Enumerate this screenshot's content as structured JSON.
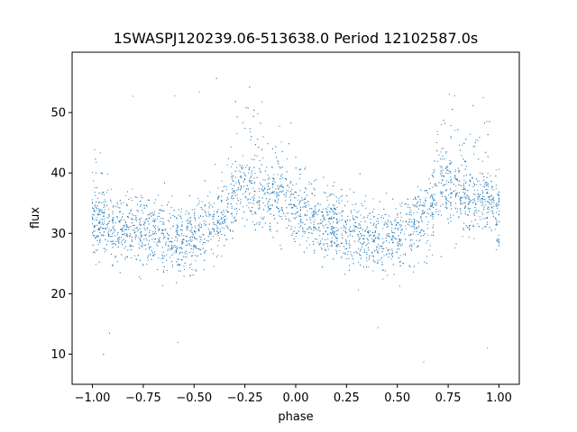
{
  "chart_data": {
    "type": "scatter",
    "title": "1SWASPJ120239.06-513638.0 Period 12102587.0s",
    "xlabel": "phase",
    "ylabel": "flux",
    "xlim": [
      -1.1,
      1.1
    ],
    "ylim": [
      5,
      60
    ],
    "x_ticks": [
      -1.0,
      -0.75,
      -0.5,
      -0.25,
      0.0,
      0.25,
      0.5,
      0.75,
      1.0
    ],
    "x_tick_labels": [
      "−1.00",
      "−0.75",
      "−0.50",
      "−0.25",
      "0.00",
      "0.25",
      "0.50",
      "0.75",
      "1.00"
    ],
    "y_ticks": [
      10,
      20,
      30,
      40,
      50
    ],
    "y_tick_labels": [
      "10",
      "20",
      "30",
      "40",
      "50"
    ],
    "grid": false,
    "marker_color": "#1f77b4",
    "series": [
      {
        "name": "",
        "description_profile": [
          {
            "x": -1.0,
            "y": 32
          },
          {
            "x": -0.95,
            "y": 32
          },
          {
            "x": -0.9,
            "y": 31
          },
          {
            "x": -0.8,
            "y": 31
          },
          {
            "x": -0.7,
            "y": 30
          },
          {
            "x": -0.6,
            "y": 29
          },
          {
            "x": -0.5,
            "y": 29
          },
          {
            "x": -0.45,
            "y": 31
          },
          {
            "x": -0.35,
            "y": 33
          },
          {
            "x": -0.3,
            "y": 37
          },
          {
            "x": -0.25,
            "y": 38
          },
          {
            "x": -0.2,
            "y": 37
          },
          {
            "x": -0.15,
            "y": 35
          },
          {
            "x": -0.1,
            "y": 36
          },
          {
            "x": -0.05,
            "y": 36
          },
          {
            "x": 0.0,
            "y": 33
          },
          {
            "x": 0.05,
            "y": 32
          },
          {
            "x": 0.1,
            "y": 32
          },
          {
            "x": 0.2,
            "y": 31
          },
          {
            "x": 0.3,
            "y": 30
          },
          {
            "x": 0.4,
            "y": 29
          },
          {
            "x": 0.5,
            "y": 29
          },
          {
            "x": 0.55,
            "y": 31
          },
          {
            "x": 0.65,
            "y": 33
          },
          {
            "x": 0.7,
            "y": 37
          },
          {
            "x": 0.75,
            "y": 38
          },
          {
            "x": 0.8,
            "y": 37
          },
          {
            "x": 0.85,
            "y": 35
          },
          {
            "x": 0.9,
            "y": 36
          },
          {
            "x": 0.95,
            "y": 36
          },
          {
            "x": 1.0,
            "y": 33
          }
        ]
      }
    ]
  }
}
